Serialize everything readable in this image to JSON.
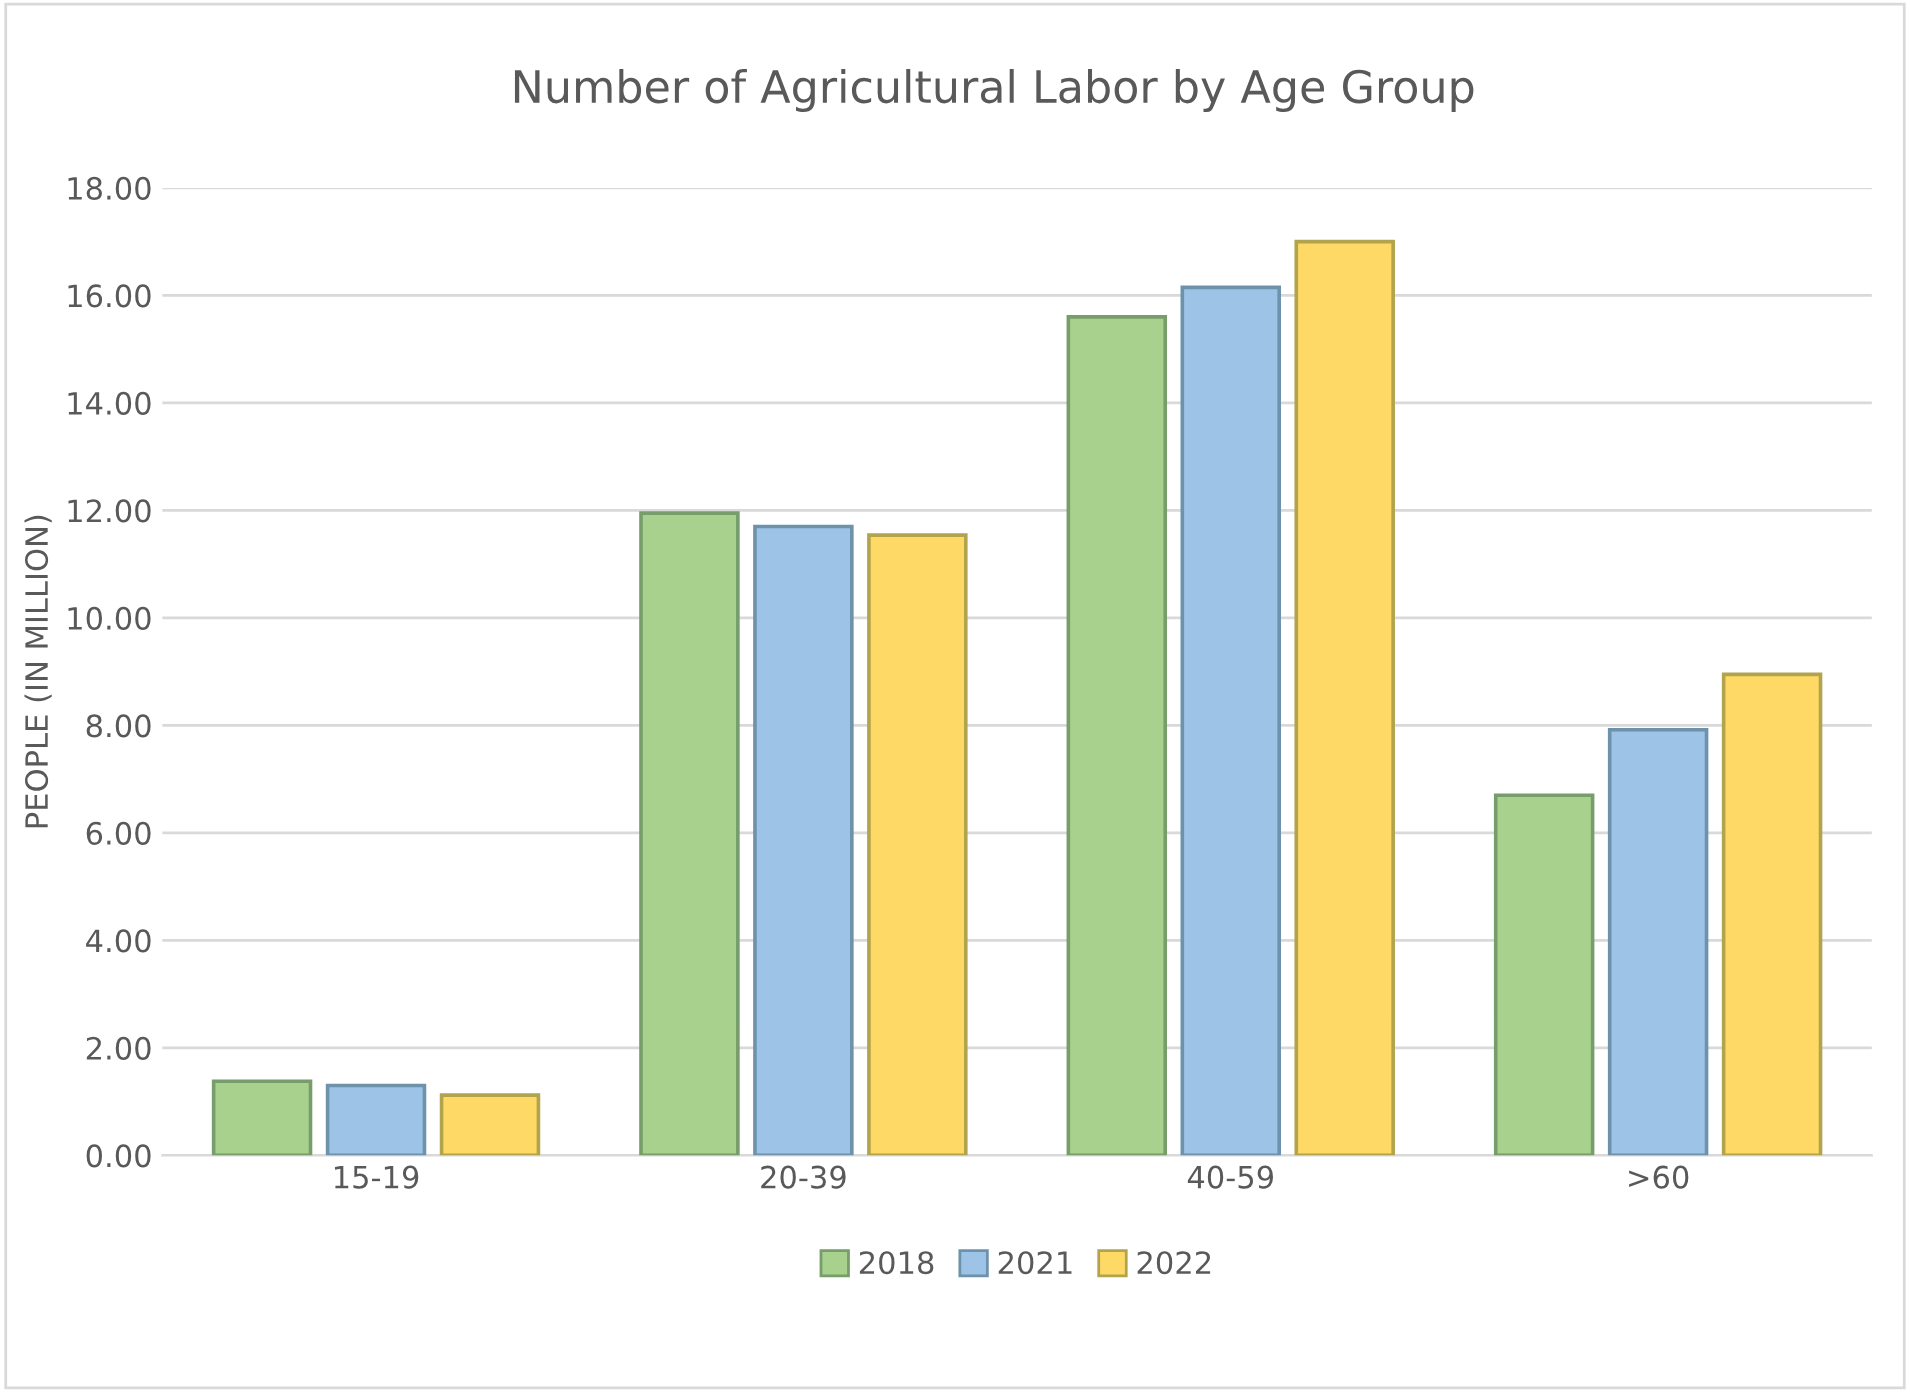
{
  "chart_data": {
    "type": "bar",
    "title": "Number of Agricultural Labor by Age Group",
    "ylabel": "PEOPLE (IN MILLION)",
    "categories": [
      "15-19",
      "20-39",
      "40-59",
      ">60"
    ],
    "series": [
      {
        "name": "2018",
        "color": "#a9d18e",
        "values": [
          1.38,
          11.95,
          15.6,
          6.7
        ]
      },
      {
        "name": "2021",
        "color": "#9dc3e6",
        "values": [
          1.3,
          11.7,
          16.15,
          7.92
        ]
      },
      {
        "name": "2022",
        "color": "#ffd966",
        "values": [
          1.12,
          11.54,
          17.0,
          8.95
        ]
      }
    ],
    "ylim": [
      0,
      18
    ],
    "yticks": [
      {
        "value": 0,
        "label": "0.00"
      },
      {
        "value": 2,
        "label": "2.00"
      },
      {
        "value": 4,
        "label": "4.00"
      },
      {
        "value": 6,
        "label": "6.00"
      },
      {
        "value": 8,
        "label": "8.00"
      },
      {
        "value": 10,
        "label": "10.00"
      },
      {
        "value": 12,
        "label": "12.00"
      },
      {
        "value": 14,
        "label": "14.00"
      },
      {
        "value": 16,
        "label": "16.00"
      },
      {
        "value": 18,
        "label": "18.00"
      }
    ],
    "grid": "y",
    "legend": "bottom"
  }
}
